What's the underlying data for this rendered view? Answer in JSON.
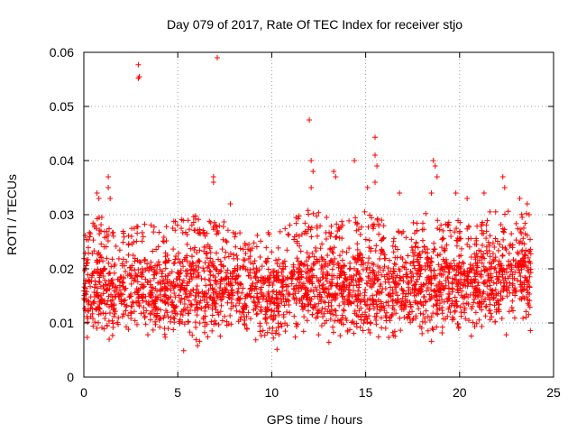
{
  "chart_data": {
    "type": "scatter",
    "title": "Day 079 of 2017, Rate Of TEC Index for receiver stjo",
    "xlabel": "GPS time / hours",
    "ylabel": "ROTI / TECUs",
    "xlim": [
      0,
      25
    ],
    "ylim": [
      0,
      0.06
    ],
    "xticks": [
      0,
      5,
      10,
      15,
      20,
      25
    ],
    "xtick_labels": [
      "0",
      "5",
      "10",
      "15",
      "20",
      "25"
    ],
    "yticks": [
      0,
      0.01,
      0.02,
      0.03,
      0.04,
      0.05,
      0.06
    ],
    "ytick_labels": [
      "0",
      "0.01",
      "0.02",
      "0.03",
      "0.04",
      "0.05",
      "0.06"
    ],
    "grid": true,
    "marker": "plus",
    "color": "#ff0000",
    "series": [
      {
        "values_description_only_for_markers": "dense band of ROTI values",
        "band": [
          [
            0.0,
            0.004,
            0.028
          ],
          [
            1.0,
            0.004,
            0.03
          ],
          [
            2.0,
            0.004,
            0.027
          ],
          [
            3.0,
            0.004,
            0.029
          ],
          [
            4.0,
            0.004,
            0.028
          ],
          [
            5.0,
            0.003,
            0.029
          ],
          [
            6.0,
            0.003,
            0.03
          ],
          [
            7.0,
            0.004,
            0.03
          ],
          [
            8.0,
            0.004,
            0.028
          ],
          [
            9.0,
            0.004,
            0.027
          ],
          [
            10.0,
            0.003,
            0.027
          ],
          [
            11.0,
            0.004,
            0.029
          ],
          [
            12.0,
            0.004,
            0.031
          ],
          [
            13.0,
            0.004,
            0.03
          ],
          [
            14.0,
            0.004,
            0.029
          ],
          [
            15.0,
            0.004,
            0.031
          ],
          [
            16.0,
            0.004,
            0.029
          ],
          [
            17.0,
            0.004,
            0.027
          ],
          [
            18.0,
            0.004,
            0.031
          ],
          [
            19.0,
            0.004,
            0.029
          ],
          [
            20.0,
            0.004,
            0.029
          ],
          [
            21.0,
            0.005,
            0.03
          ],
          [
            22.0,
            0.006,
            0.031
          ],
          [
            23.0,
            0.006,
            0.031
          ],
          [
            23.8,
            0.005,
            0.03
          ]
        ],
        "outliers": [
          [
            0.7,
            0.034
          ],
          [
            0.8,
            0.033
          ],
          [
            1.3,
            0.037
          ],
          [
            1.3,
            0.035
          ],
          [
            1.4,
            0.033
          ],
          [
            2.9,
            0.0577
          ],
          [
            2.95,
            0.0555
          ],
          [
            2.9,
            0.0552
          ],
          [
            7.1,
            0.059
          ],
          [
            6.9,
            0.037
          ],
          [
            6.9,
            0.036
          ],
          [
            7.8,
            0.032
          ],
          [
            12.0,
            0.0475
          ],
          [
            12.1,
            0.04
          ],
          [
            12.2,
            0.038
          ],
          [
            12.1,
            0.035
          ],
          [
            13.3,
            0.038
          ],
          [
            13.4,
            0.037
          ],
          [
            14.4,
            0.04
          ],
          [
            15.5,
            0.0443
          ],
          [
            15.5,
            0.041
          ],
          [
            15.6,
            0.039
          ],
          [
            15.5,
            0.036
          ],
          [
            15.1,
            0.035
          ],
          [
            16.8,
            0.034
          ],
          [
            18.6,
            0.04
          ],
          [
            18.7,
            0.039
          ],
          [
            18.8,
            0.037
          ],
          [
            18.5,
            0.034
          ],
          [
            19.8,
            0.034
          ],
          [
            20.4,
            0.033
          ],
          [
            21.3,
            0.034
          ],
          [
            22.3,
            0.037
          ],
          [
            22.4,
            0.035
          ],
          [
            23.2,
            0.033
          ],
          [
            23.6,
            0.032
          ],
          [
            23.7,
            0.03
          ]
        ]
      }
    ]
  }
}
